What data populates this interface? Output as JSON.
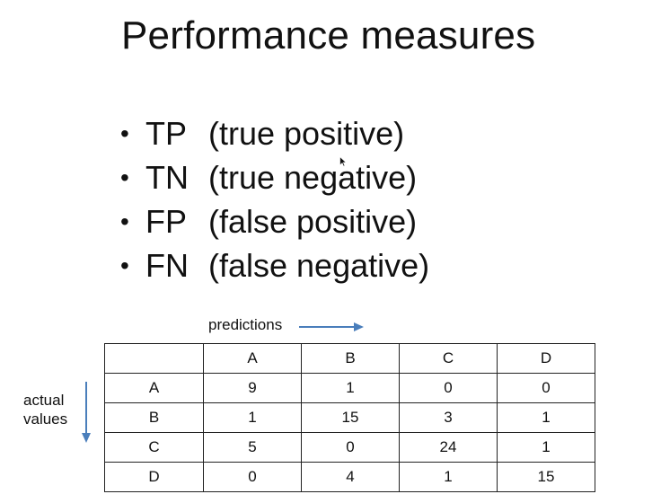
{
  "title": "Performance measures",
  "bullets": [
    {
      "term": "TP",
      "description": "(true positive)"
    },
    {
      "term": "TN",
      "description": "(true negative)"
    },
    {
      "term": "FP",
      "description": "(false positive)"
    },
    {
      "term": "FN",
      "description": "(false negative)"
    }
  ],
  "predictions_label": "predictions",
  "actual_label_line1": "actual",
  "actual_label_line2": "values",
  "matrix": {
    "column_headers": [
      "A",
      "B",
      "C",
      "D"
    ],
    "rows": [
      {
        "label": "A",
        "values": [
          "9",
          "1",
          "0",
          "0"
        ]
      },
      {
        "label": "B",
        "values": [
          "1",
          "15",
          "3",
          "1"
        ]
      },
      {
        "label": "C",
        "values": [
          "5",
          "0",
          "24",
          "1"
        ]
      },
      {
        "label": "D",
        "values": [
          "0",
          "4",
          "1",
          "15"
        ]
      }
    ]
  },
  "colors": {
    "arrow": "#4a7ebb",
    "text": "#111111"
  }
}
